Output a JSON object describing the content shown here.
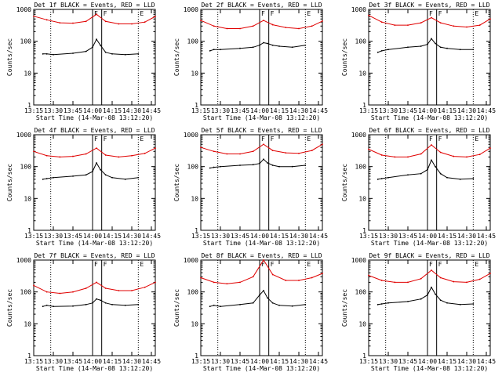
{
  "colors": {
    "events": "#000000",
    "lld": "#e00000",
    "frame": "#000000"
  },
  "shared": {
    "y_ticks": [
      {
        "value": 1,
        "label": "1"
      },
      {
        "value": 10,
        "label": "10"
      },
      {
        "value": 100,
        "label": "100"
      },
      {
        "value": 1000,
        "label": "1000"
      }
    ],
    "x_ticks": [
      "13:15",
      "13:30",
      "13:45",
      "14:00",
      "14:15",
      "14:30",
      "14:45"
    ],
    "ylabel": "Counts/sec",
    "xlabel": "Start Time (14-Mar-08 13:12:20)"
  },
  "chart_data": [
    {
      "type": "line",
      "title": "Det 1f BLACK = Events, RED = LLD",
      "yscale": "log",
      "ylim": [
        1,
        1000
      ],
      "xlim": [
        "13:15",
        "14:48"
      ],
      "grid": false,
      "xlabel": "Start Time (14-Mar-08 13:12:20)",
      "ylabel": "Counts/sec",
      "markers": [
        {
          "label": "F",
          "kind": "solid",
          "t": "14:00"
        },
        {
          "label": "F",
          "kind": "solid",
          "t": "14:07"
        },
        {
          "label": "E",
          "kind": "dotted",
          "t": "14:35"
        },
        {
          "label": "",
          "kind": "dotted",
          "t": "13:28"
        }
      ],
      "series": [
        {
          "name": "Events",
          "color": "#000000",
          "x": [
            "13:22",
            "13:25",
            "13:30",
            "13:45",
            "13:55",
            "14:00",
            "14:03",
            "14:06",
            "14:10",
            "14:15",
            "14:25",
            "14:35"
          ],
          "y": [
            40,
            40,
            38,
            42,
            48,
            65,
            115,
            75,
            45,
            40,
            38,
            40
          ]
        },
        {
          "name": "LLD",
          "color": "#e00000",
          "x": [
            "13:15",
            "13:25",
            "13:35",
            "13:45",
            "13:55",
            "14:03",
            "14:10",
            "14:20",
            "14:30",
            "14:40",
            "14:48"
          ],
          "y": [
            610,
            470,
            380,
            370,
            420,
            700,
            420,
            350,
            350,
            400,
            600
          ]
        }
      ]
    },
    {
      "type": "line",
      "title": "Det 2f BLACK = Events, RED = LLD",
      "yscale": "log",
      "ylim": [
        1,
        1000
      ],
      "xlim": [
        "13:15",
        "14:48"
      ],
      "grid": false,
      "xlabel": "Start Time (14-Mar-08 13:12:20)",
      "ylabel": "Counts/sec",
      "markers": [
        {
          "label": "F",
          "kind": "solid",
          "t": "14:00"
        },
        {
          "label": "F",
          "kind": "solid",
          "t": "14:07"
        },
        {
          "label": "E",
          "kind": "dotted",
          "t": "14:35"
        },
        {
          "label": "",
          "kind": "dotted",
          "t": "13:28"
        }
      ],
      "series": [
        {
          "name": "Events",
          "color": "#000000",
          "x": [
            "13:22",
            "13:25",
            "13:30",
            "13:45",
            "13:55",
            "14:00",
            "14:03",
            "14:06",
            "14:10",
            "14:15",
            "14:25",
            "14:35"
          ],
          "y": [
            50,
            55,
            55,
            60,
            65,
            75,
            90,
            85,
            75,
            70,
            65,
            75
          ]
        },
        {
          "name": "LLD",
          "color": "#e00000",
          "x": [
            "13:15",
            "13:25",
            "13:35",
            "13:45",
            "13:55",
            "14:03",
            "14:10",
            "14:20",
            "14:30",
            "14:40",
            "14:48"
          ],
          "y": [
            450,
            300,
            250,
            250,
            300,
            450,
            330,
            270,
            250,
            300,
            430
          ]
        }
      ]
    },
    {
      "type": "line",
      "title": "Det 3f BLACK = Events, RED = LLD",
      "yscale": "log",
      "ylim": [
        1,
        1000
      ],
      "xlim": [
        "13:15",
        "14:48"
      ],
      "grid": false,
      "xlabel": "Start Time (14-Mar-08 13:12:20)",
      "ylabel": "Counts/sec",
      "markers": [
        {
          "label": "F",
          "kind": "solid",
          "t": "14:00"
        },
        {
          "label": "F",
          "kind": "solid",
          "t": "14:07"
        },
        {
          "label": "E",
          "kind": "dotted",
          "t": "14:35"
        },
        {
          "label": "",
          "kind": "dotted",
          "t": "13:28"
        }
      ],
      "series": [
        {
          "name": "Events",
          "color": "#000000",
          "x": [
            "13:22",
            "13:25",
            "13:30",
            "13:45",
            "13:55",
            "14:00",
            "14:03",
            "14:06",
            "14:10",
            "14:15",
            "14:25",
            "14:35"
          ],
          "y": [
            45,
            50,
            55,
            65,
            70,
            80,
            120,
            85,
            65,
            60,
            55,
            55
          ]
        },
        {
          "name": "LLD",
          "color": "#e00000",
          "x": [
            "13:15",
            "13:25",
            "13:35",
            "13:45",
            "13:55",
            "14:03",
            "14:10",
            "14:20",
            "14:30",
            "14:40",
            "14:48"
          ],
          "y": [
            650,
            400,
            320,
            320,
            380,
            550,
            380,
            300,
            280,
            320,
            500
          ]
        }
      ]
    },
    {
      "type": "line",
      "title": "Det 4f BLACK = Events, RED = LLD",
      "yscale": "log",
      "ylim": [
        1,
        1000
      ],
      "xlim": [
        "13:15",
        "14:48"
      ],
      "grid": false,
      "xlabel": "Start Time (14-Mar-08 13:12:20)",
      "ylabel": "Counts/sec",
      "markers": [
        {
          "label": "F",
          "kind": "solid",
          "t": "14:00"
        },
        {
          "label": "F",
          "kind": "solid",
          "t": "14:07"
        },
        {
          "label": "E",
          "kind": "dotted",
          "t": "14:35"
        },
        {
          "label": "",
          "kind": "dotted",
          "t": "13:28"
        }
      ],
      "series": [
        {
          "name": "Events",
          "color": "#000000",
          "x": [
            "13:22",
            "13:25",
            "13:30",
            "13:45",
            "13:55",
            "14:00",
            "14:03",
            "14:06",
            "14:10",
            "14:15",
            "14:25",
            "14:35"
          ],
          "y": [
            40,
            42,
            45,
            50,
            55,
            70,
            130,
            80,
            55,
            45,
            40,
            45
          ]
        },
        {
          "name": "LLD",
          "color": "#e00000",
          "x": [
            "13:15",
            "13:25",
            "13:35",
            "13:45",
            "13:55",
            "14:03",
            "14:10",
            "14:20",
            "14:30",
            "14:40",
            "14:48"
          ],
          "y": [
            300,
            220,
            200,
            210,
            250,
            380,
            230,
            200,
            220,
            260,
            380
          ]
        }
      ]
    },
    {
      "type": "line",
      "title": "Det 5f BLACK = Events, RED = LLD",
      "yscale": "log",
      "ylim": [
        1,
        1000
      ],
      "xlim": [
        "13:15",
        "14:48"
      ],
      "grid": false,
      "xlabel": "Start Time (14-Mar-08 13:12:20)",
      "ylabel": "Counts/sec",
      "markers": [
        {
          "label": "F",
          "kind": "solid",
          "t": "14:00"
        },
        {
          "label": "F",
          "kind": "solid",
          "t": "14:07"
        },
        {
          "label": "E",
          "kind": "dotted",
          "t": "14:35"
        },
        {
          "label": "",
          "kind": "dotted",
          "t": "13:28"
        }
      ],
      "series": [
        {
          "name": "Events",
          "color": "#000000",
          "x": [
            "13:22",
            "13:25",
            "13:30",
            "13:45",
            "13:55",
            "14:00",
            "14:03",
            "14:06",
            "14:10",
            "14:15",
            "14:25",
            "14:35"
          ],
          "y": [
            90,
            95,
            100,
            110,
            115,
            125,
            170,
            130,
            110,
            100,
            100,
            110
          ]
        },
        {
          "name": "LLD",
          "color": "#e00000",
          "x": [
            "13:15",
            "13:25",
            "13:35",
            "13:45",
            "13:55",
            "14:03",
            "14:10",
            "14:20",
            "14:30",
            "14:40",
            "14:48"
          ],
          "y": [
            400,
            300,
            250,
            250,
            300,
            500,
            320,
            270,
            260,
            320,
            500
          ]
        }
      ]
    },
    {
      "type": "line",
      "title": "Det 6f BLACK = Events, RED = LLD",
      "yscale": "log",
      "ylim": [
        1,
        1000
      ],
      "xlim": [
        "13:15",
        "14:48"
      ],
      "grid": false,
      "xlabel": "Start Time (14-Mar-08 13:12:20)",
      "ylabel": "Counts/sec",
      "markers": [
        {
          "label": "F",
          "kind": "solid",
          "t": "14:00"
        },
        {
          "label": "F",
          "kind": "solid",
          "t": "14:07"
        },
        {
          "label": "E",
          "kind": "dotted",
          "t": "14:35"
        },
        {
          "label": "",
          "kind": "dotted",
          "t": "13:28"
        }
      ],
      "series": [
        {
          "name": "Events",
          "color": "#000000",
          "x": [
            "13:22",
            "13:25",
            "13:30",
            "13:45",
            "13:55",
            "14:00",
            "14:03",
            "14:06",
            "14:10",
            "14:15",
            "14:25",
            "14:35"
          ],
          "y": [
            40,
            42,
            45,
            55,
            60,
            80,
            160,
            100,
            60,
            45,
            40,
            42
          ]
        },
        {
          "name": "LLD",
          "color": "#e00000",
          "x": [
            "13:15",
            "13:25",
            "13:35",
            "13:45",
            "13:55",
            "14:03",
            "14:10",
            "14:20",
            "14:30",
            "14:40",
            "14:48"
          ],
          "y": [
            350,
            230,
            200,
            200,
            250,
            480,
            280,
            210,
            200,
            240,
            380
          ]
        }
      ]
    },
    {
      "type": "line",
      "title": "Det 7f BLACK = Events, RED = LLD",
      "yscale": "log",
      "ylim": [
        1,
        1000
      ],
      "xlim": [
        "13:15",
        "14:48"
      ],
      "grid": false,
      "xlabel": "Start Time (14-Mar-08 13:12:20)",
      "ylabel": "Counts/sec",
      "markers": [
        {
          "label": "F",
          "kind": "solid",
          "t": "14:00"
        },
        {
          "label": "F",
          "kind": "solid",
          "t": "14:07"
        },
        {
          "label": "E",
          "kind": "dotted",
          "t": "14:35"
        },
        {
          "label": "",
          "kind": "dotted",
          "t": "13:28"
        }
      ],
      "series": [
        {
          "name": "Events",
          "color": "#000000",
          "x": [
            "13:22",
            "13:25",
            "13:30",
            "13:45",
            "13:55",
            "14:00",
            "14:03",
            "14:06",
            "14:10",
            "14:15",
            "14:25",
            "14:35"
          ],
          "y": [
            35,
            38,
            35,
            36,
            40,
            45,
            60,
            55,
            45,
            40,
            38,
            40
          ]
        },
        {
          "name": "LLD",
          "color": "#e00000",
          "x": [
            "13:15",
            "13:25",
            "13:35",
            "13:45",
            "13:55",
            "14:03",
            "14:10",
            "14:20",
            "14:30",
            "14:40",
            "14:48"
          ],
          "y": [
            160,
            100,
            90,
            100,
            130,
            200,
            130,
            110,
            110,
            140,
            200
          ]
        }
      ]
    },
    {
      "type": "line",
      "title": "Det 8f BLACK = Events, RED = LLD",
      "yscale": "log",
      "ylim": [
        1,
        1000
      ],
      "xlim": [
        "13:15",
        "14:48"
      ],
      "grid": false,
      "xlabel": "Start Time (14-Mar-08 13:12:20)",
      "ylabel": "Counts/sec",
      "markers": [
        {
          "label": "F",
          "kind": "solid",
          "t": "14:00"
        },
        {
          "label": "F",
          "kind": "solid",
          "t": "14:07"
        },
        {
          "label": "E",
          "kind": "dotted",
          "t": "14:35"
        },
        {
          "label": "",
          "kind": "dotted",
          "t": "13:28"
        }
      ],
      "series": [
        {
          "name": "Events",
          "color": "#000000",
          "x": [
            "13:22",
            "13:25",
            "13:30",
            "13:45",
            "13:55",
            "14:00",
            "14:03",
            "14:06",
            "14:10",
            "14:15",
            "14:25",
            "14:35"
          ],
          "y": [
            35,
            38,
            35,
            40,
            45,
            80,
            110,
            65,
            45,
            38,
            36,
            40
          ]
        },
        {
          "name": "LLD",
          "color": "#e00000",
          "x": [
            "13:15",
            "13:25",
            "13:35",
            "13:45",
            "13:55",
            "14:03",
            "14:10",
            "14:20",
            "14:30",
            "14:40",
            "14:48"
          ],
          "y": [
            280,
            200,
            180,
            200,
            300,
            1000,
            350,
            230,
            230,
            280,
            380
          ]
        }
      ]
    },
    {
      "type": "line",
      "title": "Det 9f BLACK = Events, RED = LLD",
      "yscale": "log",
      "ylim": [
        1,
        1000
      ],
      "xlim": [
        "13:15",
        "14:48"
      ],
      "grid": false,
      "xlabel": "Start Time (14-Mar-08 13:12:20)",
      "ylabel": "Counts/sec",
      "markers": [
        {
          "label": "F",
          "kind": "solid",
          "t": "14:00"
        },
        {
          "label": "F",
          "kind": "solid",
          "t": "14:07"
        },
        {
          "label": "E",
          "kind": "dotted",
          "t": "14:35"
        },
        {
          "label": "",
          "kind": "dotted",
          "t": "13:28"
        }
      ],
      "series": [
        {
          "name": "Events",
          "color": "#000000",
          "x": [
            "13:22",
            "13:25",
            "13:30",
            "13:45",
            "13:55",
            "14:00",
            "14:03",
            "14:06",
            "14:10",
            "14:15",
            "14:25",
            "14:35"
          ],
          "y": [
            40,
            42,
            45,
            50,
            60,
            80,
            140,
            85,
            55,
            45,
            40,
            42
          ]
        },
        {
          "name": "LLD",
          "color": "#e00000",
          "x": [
            "13:15",
            "13:25",
            "13:35",
            "13:45",
            "13:55",
            "14:03",
            "14:10",
            "14:20",
            "14:30",
            "14:40",
            "14:48"
          ],
          "y": [
            330,
            230,
            200,
            200,
            260,
            480,
            280,
            210,
            200,
            250,
            380
          ]
        }
      ]
    }
  ]
}
